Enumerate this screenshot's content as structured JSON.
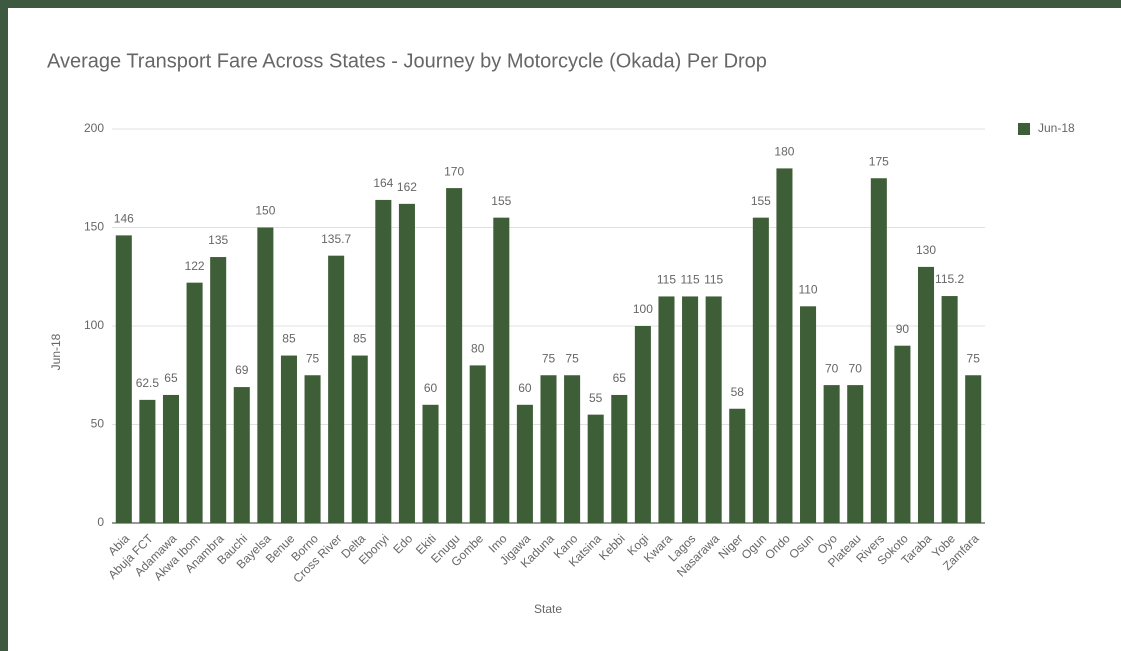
{
  "chart_data": {
    "type": "bar",
    "title": "Average Transport Fare Across States - Journey by Motorcycle (Okada) Per Drop",
    "x_label": "State",
    "y_label": "Jun-18",
    "categories": [
      "Abia",
      "Abuja FCT",
      "Adamawa",
      "Akwa Ibom",
      "Anambra",
      "Bauchi",
      "Bayelsa",
      "Benue",
      "Borno",
      "Cross River",
      "Delta",
      "Ebonyi",
      "Edo",
      "Ekiti",
      "Enugu",
      "Gombe",
      "Imo",
      "Jigawa",
      "Kaduna",
      "Kano",
      "Katsina",
      "Kebbi",
      "Kogi",
      "Kwara",
      "Lagos",
      "Nasarawa",
      "Niger",
      "Ogun",
      "Ondo",
      "Osun",
      "Oyo",
      "Plateau",
      "Rivers",
      "Sokoto",
      "Taraba",
      "Yobe",
      "Zamfara"
    ],
    "series": [
      {
        "name": "Jun-18",
        "color": "#3e5e37",
        "values": [
          146,
          62.5,
          65,
          122,
          135,
          69,
          150,
          85,
          75,
          135.7,
          85,
          164,
          162,
          60,
          170,
          80,
          155,
          60,
          75,
          75,
          55,
          65,
          100,
          115,
          115,
          115,
          58,
          155,
          180,
          110,
          70,
          70,
          175,
          90,
          130,
          115.2,
          75
        ]
      }
    ],
    "ylim": [
      0,
      200
    ],
    "yticks": [
      0,
      50,
      100,
      150,
      200
    ],
    "grid": true,
    "legend": "right"
  }
}
